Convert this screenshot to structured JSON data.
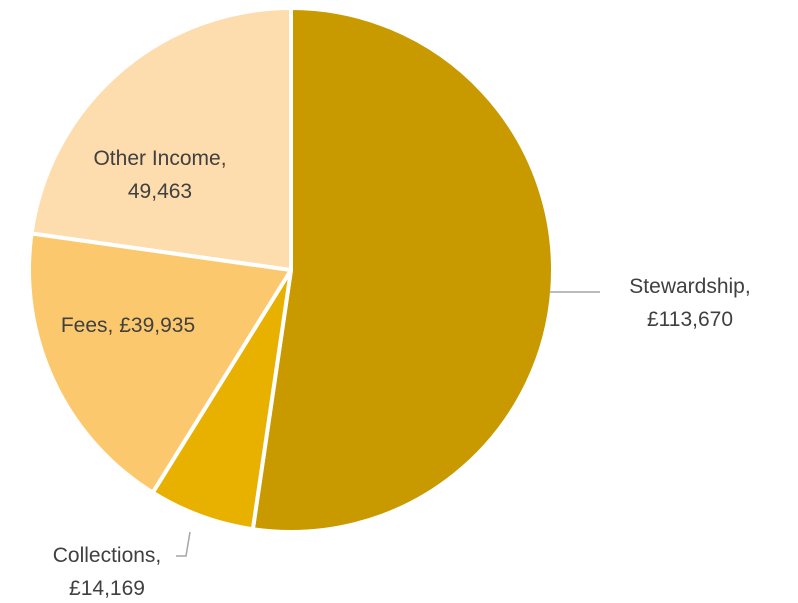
{
  "chart_data": {
    "type": "pie",
    "start": "top",
    "direction": "clockwise",
    "slices": [
      {
        "name": "Stewardship",
        "value": 113670,
        "label_lines": [
          "Stewardship,",
          "£113,670"
        ],
        "color": "#C99A00"
      },
      {
        "name": "Collections",
        "value": 14169,
        "label_lines": [
          "Collections,",
          "£14,169"
        ],
        "color": "#E8B100"
      },
      {
        "name": "Fees",
        "value": 39935,
        "label_lines": [
          "Fees, £39,935"
        ],
        "color": "#FCC86E"
      },
      {
        "name": "Other Income",
        "value": 49463,
        "label_lines": [
          "Other Income,",
          "49,463"
        ],
        "color": "#FDDCAD"
      }
    ]
  }
}
